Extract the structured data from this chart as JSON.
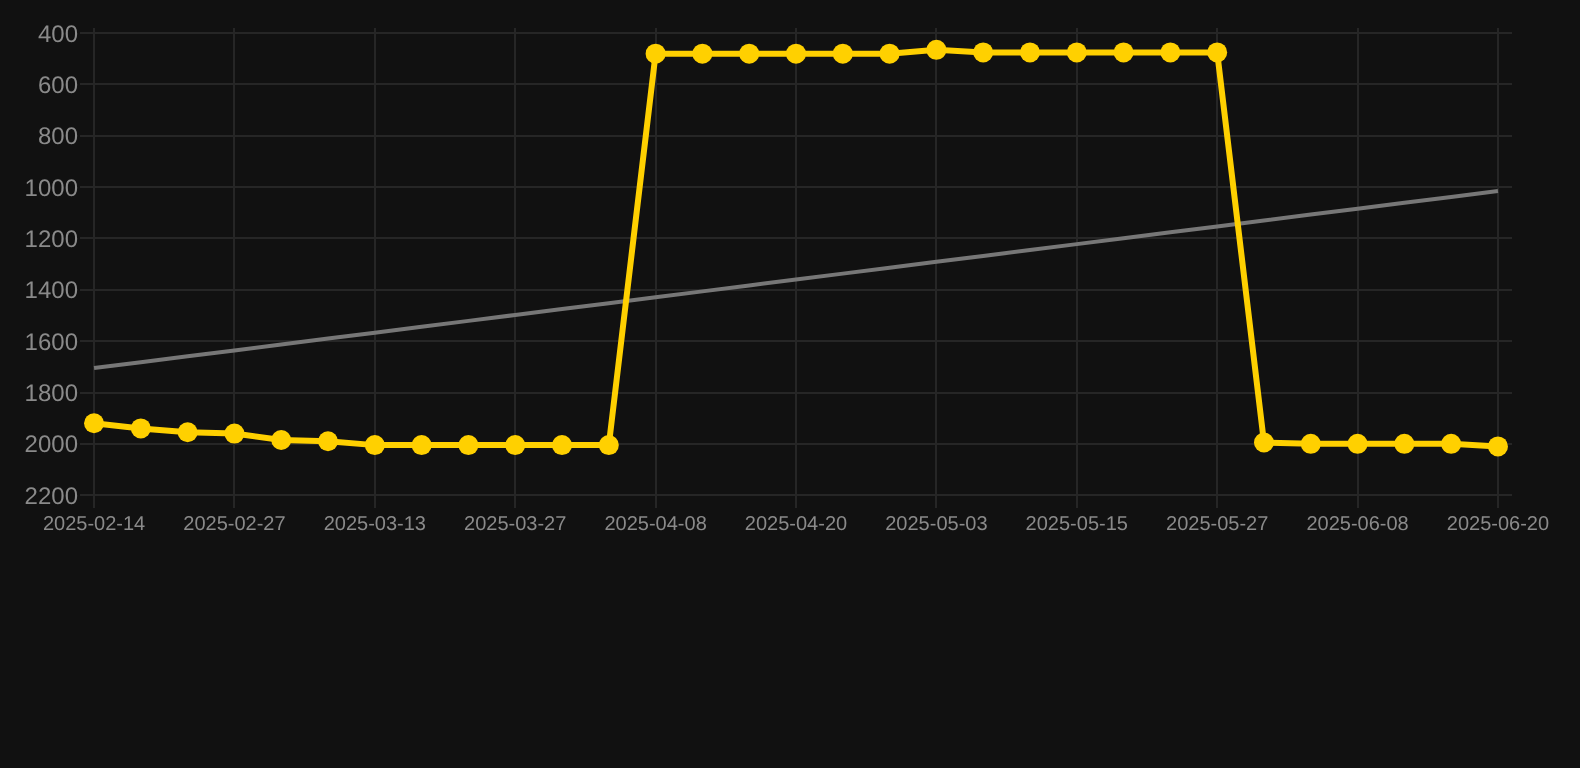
{
  "chart_data": {
    "type": "line",
    "categories": [
      "2025-02-14",
      null,
      null,
      "2025-02-27",
      null,
      null,
      "2025-03-13",
      null,
      null,
      "2025-03-27",
      null,
      null,
      "2025-04-08",
      null,
      null,
      "2025-04-20",
      null,
      null,
      "2025-05-03",
      null,
      null,
      "2025-05-15",
      null,
      null,
      "2025-05-27",
      null,
      null,
      "2025-06-08",
      null,
      null,
      "2025-06-20"
    ],
    "series": [
      {
        "color": "#777777",
        "marker": "none",
        "values": [
          1705,
          1682,
          1659,
          1636,
          1613,
          1590,
          1567,
          1544,
          1521,
          1498,
          1475,
          1452,
          1429,
          1406,
          1383,
          1360,
          1337,
          1314,
          1291,
          1268,
          1245,
          1222,
          1199,
          1176,
          1153,
          1130,
          1107,
          1084,
          1061,
          1038,
          1015
        ]
      },
      {
        "color": "#ffd000",
        "marker": "circle",
        "values": [
          1920,
          1940,
          1955,
          1960,
          1985,
          1990,
          2005,
          2005,
          2005,
          2005,
          2005,
          2005,
          480,
          480,
          480,
          480,
          480,
          480,
          465,
          475,
          475,
          475,
          475,
          475,
          475,
          1995,
          2000,
          2000,
          2000,
          2000,
          2010
        ]
      }
    ],
    "ylim": [
      2250,
      380
    ],
    "yticks": [
      400,
      600,
      800,
      1000,
      1200,
      1400,
      1600,
      1800,
      2000,
      2200
    ],
    "grid": true,
    "line_style": "solid"
  }
}
